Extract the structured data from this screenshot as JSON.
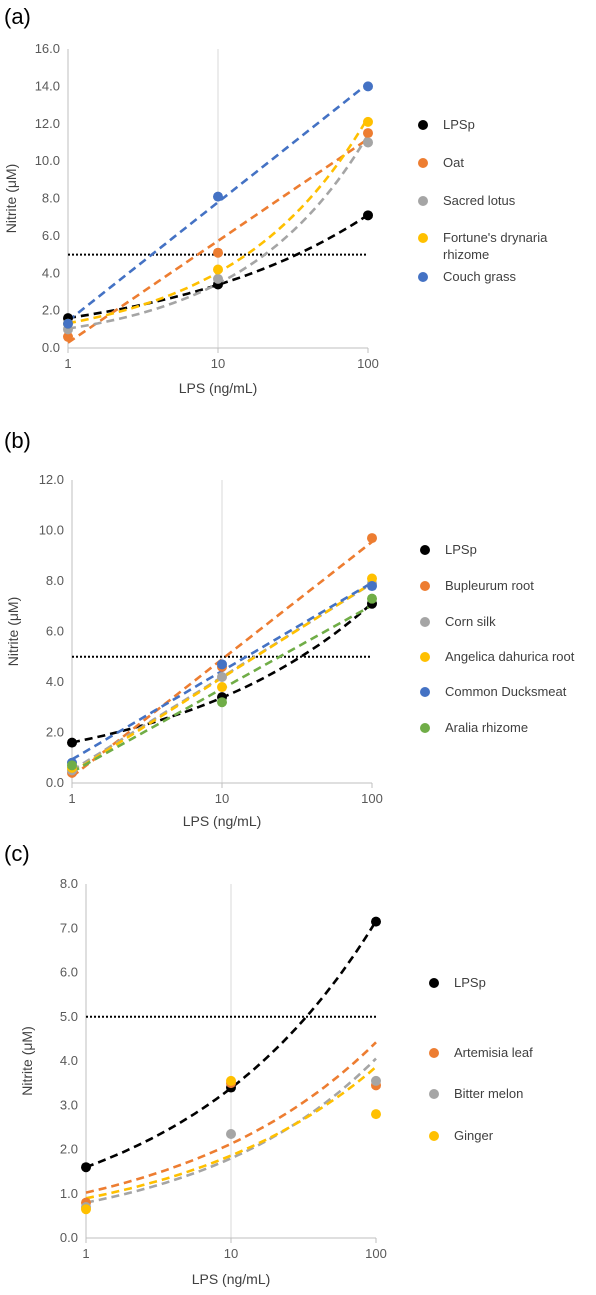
{
  "chart_data": [
    {
      "panel_label": "(a)",
      "type": "scatter",
      "xlabel": "LPS (ng/mL)",
      "ylabel": "Nitrite (μM)",
      "xscale": "log",
      "xlim": [
        1,
        100
      ],
      "ylim": [
        0,
        16
      ],
      "xticks": [
        "1",
        "10",
        "100"
      ],
      "yticks": [
        "0.0",
        "2.0",
        "4.0",
        "6.0",
        "8.0",
        "10.0",
        "12.0",
        "14.0",
        "16.0"
      ],
      "reference_line": 5.0,
      "grid": "vertical at x=10",
      "legend_position": "right",
      "x": [
        1,
        10,
        100
      ],
      "series": [
        {
          "name": "LPSp",
          "values": [
            1.6,
            3.4,
            7.1
          ],
          "color": "#000000",
          "trend": "exponential"
        },
        {
          "name": "Oat",
          "values": [
            0.6,
            5.1,
            11.5
          ],
          "color": "#ED7D31",
          "trend": "log"
        },
        {
          "name": "Sacred lotus",
          "values": [
            1.0,
            3.7,
            11.0
          ],
          "color": "#A5A5A5",
          "trend": "exponential"
        },
        {
          "name": "Fortune's drynaria rhizome",
          "values": [
            1.3,
            4.2,
            12.1
          ],
          "color": "#FFC000",
          "trend": "exponential"
        },
        {
          "name": "Couch grass",
          "values": [
            1.3,
            8.1,
            14.0
          ],
          "color": "#4472C4",
          "trend": "log"
        }
      ]
    },
    {
      "panel_label": "(b)",
      "type": "scatter",
      "xlabel": "LPS (ng/mL)",
      "ylabel": "Nitrite (μM)",
      "xscale": "log",
      "xlim": [
        1,
        100
      ],
      "ylim": [
        0,
        12
      ],
      "xticks": [
        "1",
        "10",
        "100"
      ],
      "yticks": [
        "0.0",
        "2.0",
        "4.0",
        "6.0",
        "8.0",
        "10.0",
        "12.0"
      ],
      "reference_line": 5.0,
      "grid": "vertical at x=10",
      "legend_position": "right",
      "x": [
        1,
        10,
        100
      ],
      "series": [
        {
          "name": "LPSp",
          "values": [
            1.6,
            3.4,
            7.1
          ],
          "color": "#000000",
          "trend": "exponential"
        },
        {
          "name": "Bupleurum root",
          "values": [
            0.4,
            4.6,
            9.7
          ],
          "color": "#ED7D31",
          "trend": "log"
        },
        {
          "name": "Corn silk",
          "values": [
            0.5,
            4.2,
            7.9
          ],
          "color": "#A5A5A5",
          "trend": "log"
        },
        {
          "name": "Angelica dahurica root",
          "values": [
            0.6,
            3.8,
            8.1
          ],
          "color": "#FFC000",
          "trend": "log"
        },
        {
          "name": "Common Ducksmeat",
          "values": [
            0.8,
            4.7,
            7.8
          ],
          "color": "#4472C4",
          "trend": "log"
        },
        {
          "name": "Aralia rhizome",
          "values": [
            0.7,
            3.2,
            7.3
          ],
          "color": "#70AD47",
          "trend": "log"
        }
      ]
    },
    {
      "panel_label": "(c)",
      "type": "scatter",
      "xlabel": "LPS (ng/mL)",
      "ylabel": "Nitrite (μM)",
      "xscale": "log",
      "xlim": [
        1,
        100
      ],
      "ylim": [
        0,
        8
      ],
      "xticks": [
        "1",
        "10",
        "100"
      ],
      "yticks": [
        "0.0",
        "1.0",
        "2.0",
        "3.0",
        "4.0",
        "5.0",
        "6.0",
        "7.0",
        "8.0"
      ],
      "reference_line": 5.0,
      "grid": "vertical at x=10",
      "legend_position": "right",
      "x": [
        1,
        10,
        100
      ],
      "series": [
        {
          "name": "LPSp",
          "values": [
            1.6,
            3.4,
            7.15
          ],
          "color": "#000000",
          "trend": "exponential"
        },
        {
          "name": "Artemisia leaf",
          "values": [
            0.8,
            3.5,
            3.45
          ],
          "color": "#ED7D31",
          "trend": "exponential"
        },
        {
          "name": "Bitter melon",
          "values": [
            0.7,
            2.35,
            3.55
          ],
          "color": "#A5A5A5",
          "trend": "exponential"
        },
        {
          "name": "Ginger",
          "values": [
            0.65,
            3.55,
            2.8
          ],
          "color": "#FFC000",
          "trend": "exponential"
        }
      ]
    }
  ]
}
